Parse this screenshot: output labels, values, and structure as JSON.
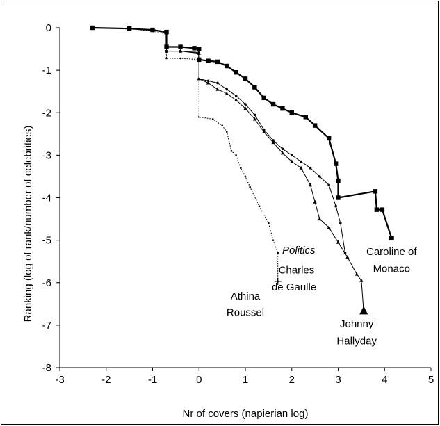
{
  "chart_data": {
    "type": "line",
    "title": "",
    "xlabel": "Nr of covers (napierian log)",
    "ylabel": "Ranking (log of rank/number of celebrities)",
    "xlim": [
      -3,
      5
    ],
    "ylim": [
      -8,
      0
    ],
    "x_ticks": [
      "-3",
      "-2",
      "-1",
      "0",
      "1",
      "2",
      "3",
      "4",
      "5"
    ],
    "y_ticks": [
      "0",
      "-1",
      "-2",
      "-3",
      "-4",
      "-5",
      "-6",
      "-7",
      "-8"
    ],
    "grid": false,
    "legend": "none",
    "series": [
      {
        "style": "thick-square",
        "points": [
          [
            -2.3,
            0
          ],
          [
            -1.5,
            -0.02
          ],
          [
            -1.0,
            -0.05
          ],
          [
            -0.7,
            -0.1
          ],
          [
            -0.7,
            -0.45
          ],
          [
            -0.4,
            -0.45
          ],
          [
            -0.1,
            -0.48
          ],
          [
            0,
            -0.5
          ],
          [
            0,
            -0.75
          ],
          [
            0.2,
            -0.78
          ],
          [
            0.4,
            -0.8
          ],
          [
            0.6,
            -0.9
          ],
          [
            0.8,
            -1.05
          ],
          [
            1.0,
            -1.2
          ],
          [
            1.2,
            -1.4
          ],
          [
            1.4,
            -1.65
          ],
          [
            1.6,
            -1.8
          ],
          [
            1.8,
            -1.9
          ],
          [
            2.0,
            -2.0
          ],
          [
            2.3,
            -2.1
          ],
          [
            2.5,
            -2.3
          ],
          [
            2.8,
            -2.6
          ],
          [
            2.95,
            -3.2
          ],
          [
            3.0,
            -3.6
          ],
          [
            3.0,
            -4.0
          ],
          [
            3.8,
            -3.85
          ],
          [
            3.83,
            -4.28
          ],
          [
            3.95,
            -4.28
          ],
          [
            4.15,
            -4.95
          ]
        ]
      },
      {
        "style": "thin-dot",
        "points": [
          [
            -2.3,
            0
          ],
          [
            -1.5,
            -0.02
          ],
          [
            -1.0,
            -0.05
          ],
          [
            -0.7,
            -0.12
          ],
          [
            -0.7,
            -0.55
          ],
          [
            -0.4,
            -0.55
          ],
          [
            0,
            -0.58
          ],
          [
            0,
            -1.2
          ],
          [
            0.2,
            -1.25
          ],
          [
            0.4,
            -1.3
          ],
          [
            0.6,
            -1.45
          ],
          [
            0.8,
            -1.6
          ],
          [
            1.0,
            -1.8
          ],
          [
            1.2,
            -2.05
          ],
          [
            1.4,
            -2.4
          ],
          [
            1.6,
            -2.65
          ],
          [
            1.8,
            -2.85
          ],
          [
            2.0,
            -3.0
          ],
          [
            2.2,
            -3.15
          ],
          [
            2.4,
            -3.3
          ],
          [
            2.6,
            -3.5
          ],
          [
            2.8,
            -3.7
          ],
          [
            2.95,
            -4.2
          ],
          [
            3.05,
            -4.6
          ],
          [
            3.15,
            -5.3
          ]
        ]
      },
      {
        "style": "thin-triangle",
        "points": [
          [
            -2.3,
            0
          ],
          [
            -1.5,
            -0.02
          ],
          [
            -1.0,
            -0.05
          ],
          [
            -0.7,
            -0.12
          ],
          [
            -0.7,
            -0.55
          ],
          [
            -0.4,
            -0.55
          ],
          [
            0,
            -0.6
          ],
          [
            0,
            -1.2
          ],
          [
            0.2,
            -1.3
          ],
          [
            0.4,
            -1.45
          ],
          [
            0.6,
            -1.55
          ],
          [
            0.8,
            -1.7
          ],
          [
            1.0,
            -1.9
          ],
          [
            1.2,
            -2.15
          ],
          [
            1.4,
            -2.45
          ],
          [
            1.6,
            -2.7
          ],
          [
            1.8,
            -2.95
          ],
          [
            2.0,
            -3.15
          ],
          [
            2.2,
            -3.3
          ],
          [
            2.4,
            -3.7
          ],
          [
            2.5,
            -4.1
          ],
          [
            2.6,
            -4.5
          ],
          [
            2.8,
            -4.7
          ],
          [
            3.0,
            -5.05
          ],
          [
            3.2,
            -5.4
          ],
          [
            3.4,
            -5.8
          ],
          [
            3.5,
            -5.95
          ],
          [
            3.55,
            -6.68
          ]
        ]
      },
      {
        "style": "dotted-plus",
        "points": [
          [
            -2.3,
            0
          ],
          [
            -1.5,
            -0.02
          ],
          [
            -1.0,
            -0.08
          ],
          [
            -0.7,
            -0.15
          ],
          [
            -0.7,
            -0.72
          ],
          [
            -0.4,
            -0.72
          ],
          [
            0,
            -0.75
          ],
          [
            0,
            -2.1
          ],
          [
            0.3,
            -2.15
          ],
          [
            0.5,
            -2.3
          ],
          [
            0.6,
            -2.45
          ],
          [
            0.7,
            -2.9
          ],
          [
            0.8,
            -3.0
          ],
          [
            0.9,
            -3.3
          ],
          [
            1.0,
            -3.5
          ],
          [
            1.1,
            -3.75
          ],
          [
            1.3,
            -4.2
          ],
          [
            1.5,
            -4.6
          ],
          [
            1.6,
            -5.0
          ],
          [
            1.7,
            -5.3
          ],
          [
            1.7,
            -5.97
          ]
        ]
      }
    ],
    "annotations": [
      {
        "text": "Caroline of",
        "x": 4.15,
        "y": -5.35
      },
      {
        "text": "Monaco",
        "x": 4.15,
        "y": -5.75
      },
      {
        "text": "Politics",
        "x": 2.15,
        "y": -5.32
      },
      {
        "text": "Charles",
        "x": 2.1,
        "y": -5.78
      },
      {
        "text": "de Gaulle",
        "x": 2.05,
        "y": -6.18
      },
      {
        "text": "Athina",
        "x": 1.0,
        "y": -6.4
      },
      {
        "text": "Roussel",
        "x": 1.0,
        "y": -6.78
      },
      {
        "text": "Johnny",
        "x": 3.4,
        "y": -7.05
      },
      {
        "text": "Hallyday",
        "x": 3.4,
        "y": -7.45
      }
    ]
  }
}
